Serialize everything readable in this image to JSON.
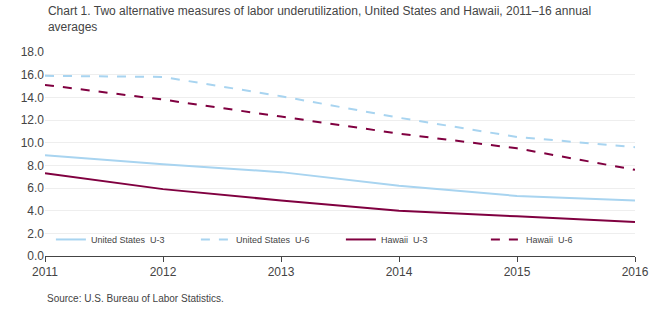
{
  "chart_data": {
    "type": "line",
    "title": "Chart 1. Two alternative measures of labor underutilization, United States and Hawaii, 2011–16 annual\naverages",
    "annotations": [
      "Source: U.S. Bureau of Labor Statistics."
    ],
    "x": [
      2011,
      2012,
      2013,
      2014,
      2015,
      2016
    ],
    "xlim": [
      2011,
      2016
    ],
    "xticks": [
      2011,
      2012,
      2013,
      2014,
      2015,
      2016
    ],
    "ylim": [
      0,
      18
    ],
    "yticks": [
      {
        "value": 0,
        "label": "0.0"
      },
      {
        "value": 2,
        "label": "2.0"
      },
      {
        "value": 4,
        "label": "4.0"
      },
      {
        "value": 6,
        "label": "6.0"
      },
      {
        "value": 8,
        "label": "8.0"
      },
      {
        "value": 10,
        "label": "10.0"
      },
      {
        "value": 12,
        "label": "12.0"
      },
      {
        "value": 14,
        "label": "14.0"
      },
      {
        "value": 16,
        "label": "16.0"
      },
      {
        "value": 18,
        "label": "18.0"
      }
    ],
    "grid": true,
    "legend": "lower left",
    "series": [
      {
        "name": "United States  U-3",
        "color": "#a8d4f0",
        "line_style": "solid",
        "values": [
          8.9,
          8.1,
          7.4,
          6.2,
          5.3,
          4.9
        ]
      },
      {
        "name": "United States  U-6",
        "color": "#a8d4f0",
        "line_style": "dashed",
        "values": [
          15.9,
          15.8,
          14.1,
          12.2,
          10.5,
          9.6
        ]
      },
      {
        "name": "Hawaii  U-3",
        "color": "#800040",
        "line_style": "solid",
        "values": [
          7.3,
          5.9,
          4.9,
          4.0,
          3.5,
          3.0
        ]
      },
      {
        "name": "Hawaii  U-6",
        "color": "#800040",
        "line_style": "dashed",
        "values": [
          15.1,
          13.8,
          12.3,
          10.8,
          9.5,
          7.6
        ]
      }
    ]
  }
}
